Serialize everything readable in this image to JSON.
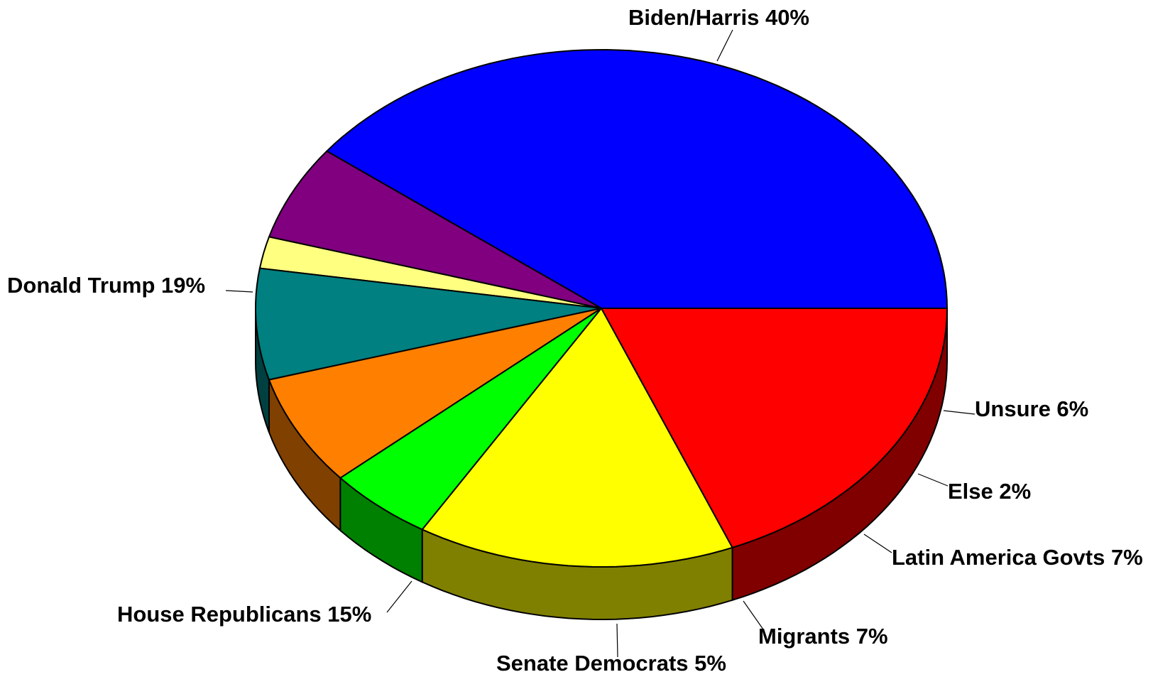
{
  "chart_data": {
    "type": "pie",
    "title": "",
    "style": "3d",
    "slices": [
      {
        "label": "Biden/Harris",
        "value": 40,
        "value_label": "40%",
        "color": "#0000FF",
        "side_color": "#00008A"
      },
      {
        "label": "Unsure",
        "value": 6,
        "value_label": "6%",
        "color": "#800080",
        "side_color": "#3D003D"
      },
      {
        "label": "Else",
        "value": 2,
        "value_label": "2%",
        "color": "#FFFF80",
        "side_color": "#808040"
      },
      {
        "label": "Latin America Govts",
        "value": 7,
        "value_label": "7%",
        "color": "#008080",
        "side_color": "#004040"
      },
      {
        "label": "Migrants",
        "value": 7,
        "value_label": "7%",
        "color": "#FF8000",
        "side_color": "#804000"
      },
      {
        "label": "Senate Democrats",
        "value": 5,
        "value_label": "5%",
        "color": "#00FF00",
        "side_color": "#008000"
      },
      {
        "label": "House Republicans",
        "value": 15,
        "value_label": "15%",
        "color": "#FFFF00",
        "side_color": "#808000"
      },
      {
        "label": "Donald Trump",
        "value": 19,
        "value_label": "19%",
        "color": "#FF0000",
        "side_color": "#800000"
      }
    ]
  }
}
